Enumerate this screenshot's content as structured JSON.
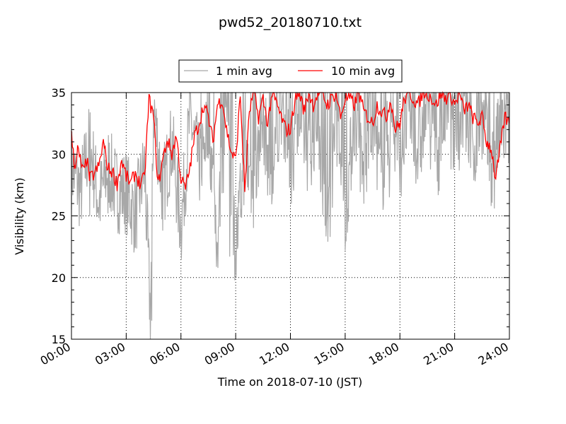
{
  "chart_data": {
    "type": "line",
    "title": "pwd52_20180710.txt",
    "xlabel": "Time on 2018-07-10 (JST)",
    "ylabel": "Visibility (km)",
    "xlim": [
      "00:00",
      "24:00"
    ],
    "ylim": [
      15,
      35
    ],
    "x_ticks": [
      "00:00",
      "03:00",
      "06:00",
      "09:00",
      "12:00",
      "15:00",
      "18:00",
      "21:00",
      "24:00"
    ],
    "y_ticks": [
      "15",
      "20",
      "25",
      "30",
      "35"
    ],
    "grid": true,
    "legend_position": "top-center",
    "colors": {
      "one_min": "#a8a8a8",
      "ten_min": "#ff0000"
    },
    "series": [
      {
        "name": "1 min avg",
        "x": [
          "00:00",
          "00:30",
          "01:00",
          "01:30",
          "02:00",
          "02:30",
          "03:00",
          "03:30",
          "04:00",
          "04:20",
          "04:30",
          "05:00",
          "05:30",
          "06:00",
          "06:30",
          "07:00",
          "07:30",
          "08:00",
          "08:30",
          "09:00",
          "09:30",
          "10:00",
          "10:30",
          "11:00",
          "11:30",
          "12:00",
          "12:30",
          "13:00",
          "13:30",
          "14:00",
          "14:30",
          "15:00",
          "15:30",
          "16:00",
          "16:30",
          "17:00",
          "17:30",
          "18:00",
          "18:30",
          "19:00",
          "19:30",
          "20:00",
          "20:30",
          "21:00",
          "21:30",
          "22:00",
          "22:30",
          "23:00",
          "23:30",
          "24:00"
        ],
        "values": [
          29,
          27,
          31,
          26,
          29,
          27,
          27,
          25,
          29,
          16.5,
          34,
          27,
          31,
          24,
          33,
          29,
          33,
          23,
          34,
          22,
          30,
          27,
          33,
          27,
          34,
          29,
          33,
          30,
          33,
          23,
          33,
          25,
          33,
          28,
          33,
          28,
          33,
          29,
          34,
          30,
          34,
          29,
          34,
          31,
          33,
          30,
          33,
          29,
          32,
          32
        ],
        "low_extremes": [
          [
            "01:00",
            25.0
          ],
          [
            "02:00",
            25.2
          ],
          [
            "03:00",
            24.8
          ],
          [
            "04:24",
            16.5
          ],
          [
            "05:00",
            23.8
          ],
          [
            "06:00",
            23.7
          ],
          [
            "08:00",
            22.8
          ],
          [
            "08:40",
            21.7
          ],
          [
            "09:00",
            22.1
          ],
          [
            "14:10",
            23.3
          ],
          [
            "15:00",
            22.2
          ],
          [
            "17:25",
            26.5
          ],
          [
            "18:00",
            27.0
          ],
          [
            "23:10",
            25.6
          ]
        ],
        "high_extremes": "frequently reaches 35 (top of axis) from 07:00 to 24:00"
      },
      {
        "name": "10 min avg",
        "x": [
          "00:00",
          "00:10",
          "00:20",
          "00:30",
          "00:40",
          "00:50",
          "01:00",
          "01:15",
          "01:30",
          "01:45",
          "02:00",
          "02:15",
          "02:30",
          "02:45",
          "03:00",
          "03:15",
          "03:30",
          "03:45",
          "04:00",
          "04:15",
          "04:30",
          "04:45",
          "05:00",
          "05:15",
          "05:30",
          "05:45",
          "06:00",
          "06:15",
          "06:30",
          "06:45",
          "07:00",
          "07:15",
          "07:30",
          "07:45",
          "08:00",
          "08:15",
          "08:30",
          "08:45",
          "09:00",
          "09:15",
          "09:30",
          "09:45",
          "10:00",
          "10:15",
          "10:30",
          "10:45",
          "11:00",
          "11:15",
          "11:30",
          "11:45",
          "12:00",
          "12:15",
          "12:30",
          "12:45",
          "13:00",
          "13:15",
          "13:30",
          "13:45",
          "14:00",
          "14:15",
          "14:30",
          "14:45",
          "15:00",
          "15:15",
          "15:30",
          "15:45",
          "16:00",
          "16:15",
          "16:30",
          "16:45",
          "17:00",
          "17:15",
          "17:30",
          "17:45",
          "18:00",
          "18:15",
          "18:30",
          "18:45",
          "19:00",
          "19:15",
          "19:30",
          "19:45",
          "20:00",
          "20:15",
          "20:30",
          "20:45",
          "21:00",
          "21:15",
          "21:30",
          "21:45",
          "22:00",
          "22:15",
          "22:30",
          "22:45",
          "23:00",
          "23:15",
          "23:30",
          "23:45",
          "24:00"
        ],
        "values": [
          31.5,
          29.0,
          30.4,
          29.4,
          28.5,
          29.6,
          28.0,
          28.4,
          29.0,
          31.0,
          28.8,
          28.6,
          27.6,
          29.5,
          28.2,
          27.6,
          28.5,
          27.6,
          28.0,
          34.5,
          33.0,
          27.5,
          29.5,
          31.2,
          30.0,
          31.5,
          28.0,
          27.2,
          29.0,
          31.5,
          32.5,
          34.0,
          33.0,
          31.0,
          34.0,
          34.5,
          32.0,
          30.2,
          29.5,
          34.8,
          27.0,
          33.5,
          35.0,
          33.0,
          34.5,
          32.5,
          35.0,
          34.0,
          33.0,
          32.0,
          32.0,
          34.5,
          35.0,
          33.5,
          35.0,
          34.0,
          35.0,
          35.0,
          34.0,
          34.5,
          35.0,
          33.0,
          34.5,
          34.5,
          34.0,
          35.0,
          33.5,
          33.0,
          32.5,
          34.0,
          33.5,
          33.0,
          34.5,
          32.0,
          32.5,
          34.5,
          35.0,
          34.5,
          34.0,
          35.0,
          35.0,
          34.5,
          34.0,
          35.0,
          34.5,
          35.0,
          34.0,
          35.0,
          33.5,
          34.0,
          33.0,
          32.5,
          33.0,
          31.0,
          30.5,
          28.0,
          30.5,
          33.0,
          32.5
        ]
      }
    ]
  }
}
